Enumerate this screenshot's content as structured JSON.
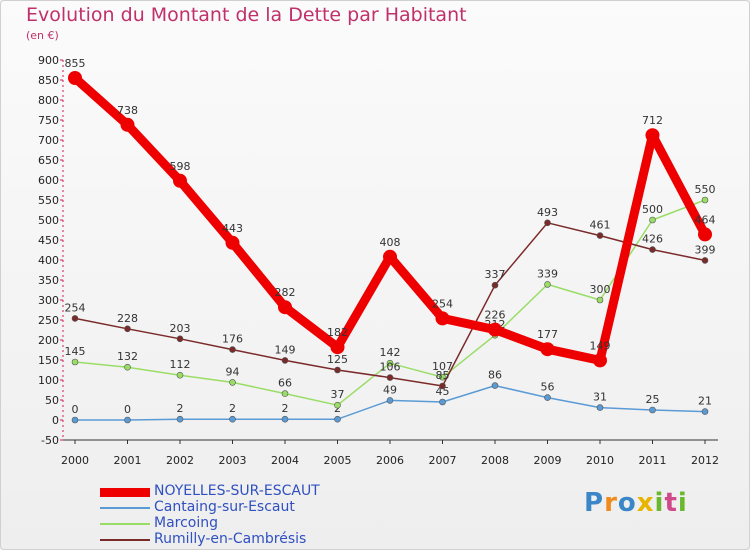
{
  "header": {
    "title": "Evolution du Montant de la Dette par Habitant",
    "unit": "(en €)"
  },
  "logo": {
    "text": "Proxiti",
    "letters": [
      "P",
      "r",
      "o",
      "x",
      "i",
      "t",
      "i"
    ],
    "colors": [
      "#3a86c8",
      "#f08a1c",
      "#3a86c8",
      "#e8b400",
      "#6ab82c",
      "#d04a8a",
      "#6ab82c"
    ]
  },
  "chart_data": {
    "type": "line",
    "title": "Evolution du Montant de la Dette par Habitant",
    "ylabel": "(en €)",
    "xlabel": "",
    "categories": [
      "2000",
      "2001",
      "2002",
      "2003",
      "2004",
      "2005",
      "2006",
      "2007",
      "2008",
      "2009",
      "2010",
      "2011",
      "2012"
    ],
    "ylim": [
      -50,
      900
    ],
    "yticks": [
      -50,
      0,
      50,
      100,
      150,
      200,
      250,
      300,
      350,
      400,
      450,
      500,
      550,
      600,
      650,
      700,
      750,
      800,
      850,
      900
    ],
    "grid": false,
    "legend_position": "bottom-left",
    "series": [
      {
        "name": "NOYELLES-SUR-ESCAUT",
        "color": "#ee0000",
        "thick": true,
        "values": [
          855,
          738,
          598,
          443,
          282,
          182,
          408,
          254,
          226,
          177,
          149,
          712,
          464
        ],
        "labels": [
          "855",
          "738",
          "598",
          "443",
          "282",
          "182",
          "408",
          "254",
          "226",
          "177",
          "149",
          "712",
          "464"
        ]
      },
      {
        "name": "Cantaing-sur-Escaut",
        "color": "#5b9bd5",
        "thick": false,
        "values": [
          0,
          0,
          2,
          2,
          2,
          2,
          49,
          45,
          86,
          56,
          31,
          25,
          21
        ],
        "labels": [
          "0",
          "0",
          "2",
          "2",
          "2",
          "2",
          "49",
          "45",
          "86",
          "56",
          "31",
          "25",
          "21"
        ]
      },
      {
        "name": "Marcoing",
        "color": "#99dd66",
        "thick": false,
        "values": [
          145,
          132,
          112,
          94,
          66,
          37,
          142,
          107,
          212,
          339,
          300,
          500,
          550
        ],
        "labels": [
          "145",
          "132",
          "112",
          "94",
          "66",
          "37",
          "142",
          "107",
          "212",
          "339",
          "300",
          "500",
          "550"
        ]
      },
      {
        "name": "Rumilly-en-Cambrésis",
        "color": "#7b2a2a",
        "thick": false,
        "values": [
          254,
          228,
          203,
          176,
          149,
          125,
          106,
          85,
          337,
          493,
          461,
          426,
          399
        ],
        "labels": [
          "254",
          "228",
          "203",
          "176",
          "149",
          "125",
          "106",
          "85",
          "337",
          "493",
          "461",
          "426",
          "399"
        ]
      }
    ]
  }
}
